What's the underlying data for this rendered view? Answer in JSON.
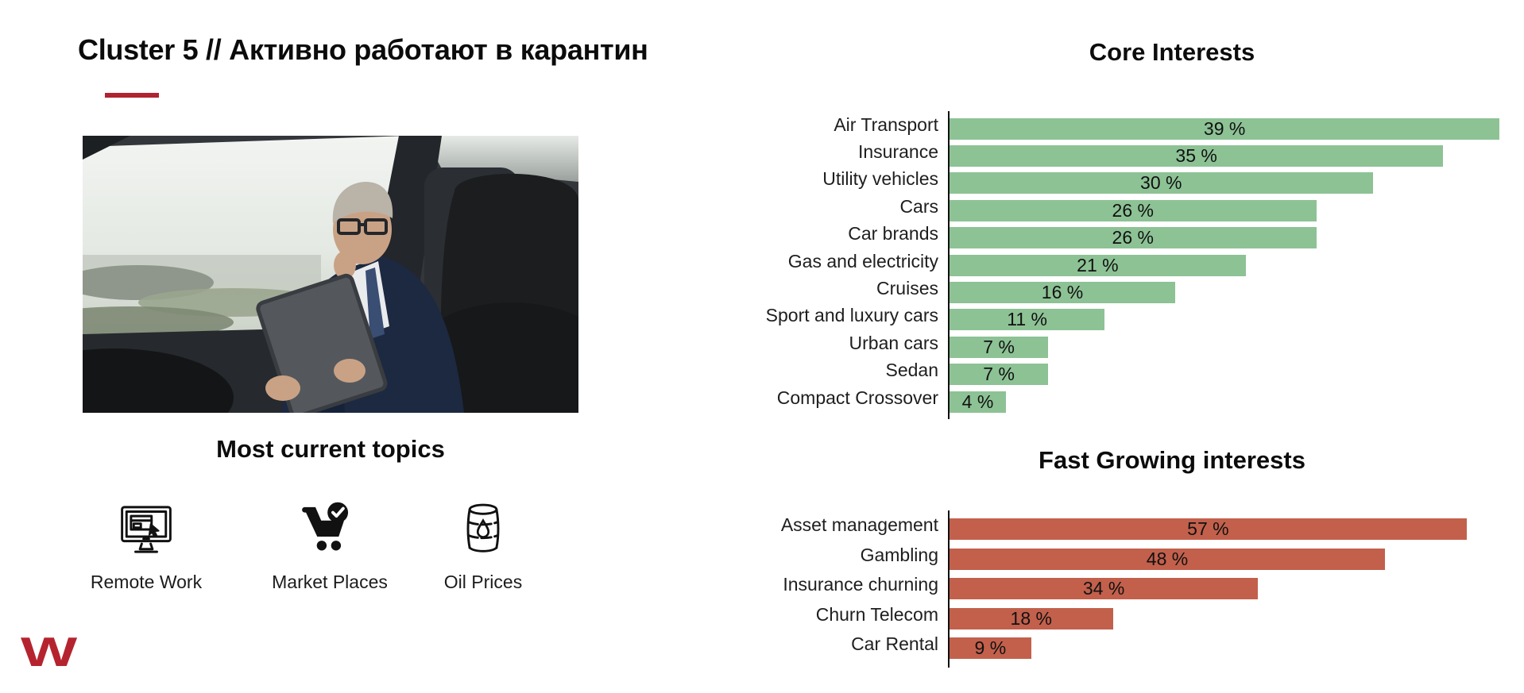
{
  "header": {
    "title": "Cluster 5 // Активно работают в карантин"
  },
  "colors": {
    "accent_red": "#b0232f",
    "logo_red": "#b5242e",
    "core_bar_green": "#8dc295",
    "fast_bar_red": "#c2604c"
  },
  "topics": {
    "title": "Most current topics",
    "items": [
      {
        "label": "Remote Work",
        "icon": "remote-work-monitor-icon"
      },
      {
        "label": "Market Places",
        "icon": "marketplace-cart-icon"
      },
      {
        "label": "Oil Prices",
        "icon": "oil-barrel-icon"
      }
    ]
  },
  "footer": {
    "logo_text": "W"
  },
  "chart_data": [
    {
      "type": "bar",
      "orientation": "horizontal",
      "title": "Core Interests",
      "categories": [
        "Air Transport",
        "Insurance",
        "Utility vehicles",
        "Cars",
        "Car brands",
        "Gas and electricity",
        "Cruises",
        "Sport and luxury cars",
        "Urban cars",
        "Sedan",
        "Compact Crossover"
      ],
      "values": [
        39,
        35,
        30,
        26,
        26,
        21,
        16,
        11,
        7,
        7,
        4
      ],
      "value_suffix": " %",
      "xlim": [
        0,
        40
      ],
      "bar_color": "#8dc295",
      "value_labels": "centered-inside",
      "grid": false,
      "legend": false,
      "xlabel": "",
      "ylabel": ""
    },
    {
      "type": "bar",
      "orientation": "horizontal",
      "title": "Fast Growing interests",
      "categories": [
        "Asset management",
        "Gambling",
        "Insurance churning",
        "Churn Telecom",
        "Car Rental"
      ],
      "values": [
        57,
        48,
        34,
        18,
        9
      ],
      "value_suffix": " %",
      "xlim": [
        0,
        60
      ],
      "bar_color": "#c2604c",
      "value_labels": "centered-inside",
      "grid": false,
      "legend": false,
      "xlabel": "",
      "ylabel": ""
    }
  ]
}
